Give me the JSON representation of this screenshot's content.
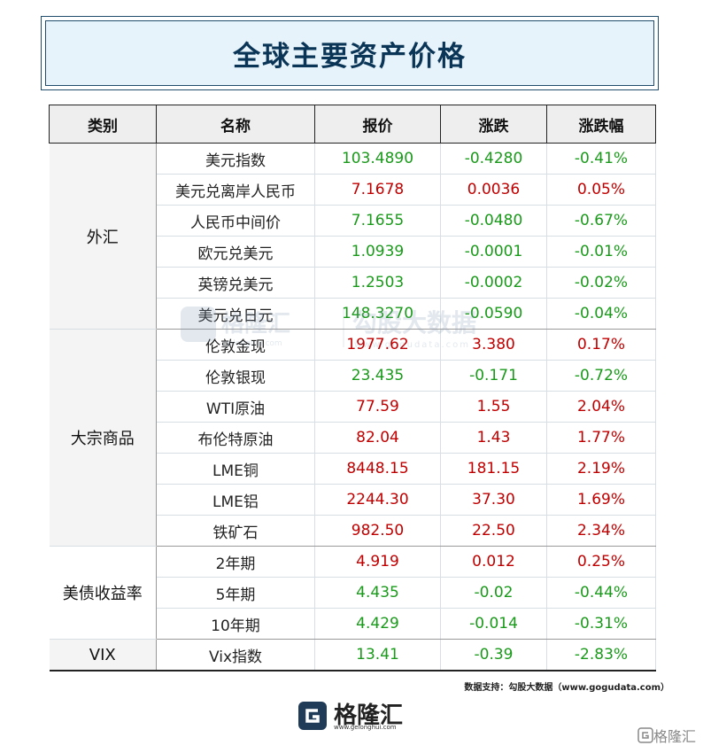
{
  "title": "全球主要资产价格",
  "headers": [
    "类别",
    "名称",
    "报价",
    "涨跌",
    "涨跌幅"
  ],
  "groups": [
    {
      "category": "外汇",
      "rows": [
        {
          "name": "美元指数",
          "price": "103.4890",
          "change": "-0.4280",
          "pct": "-0.41%",
          "dir": "down"
        },
        {
          "name": "美元兑离岸人民币",
          "price": "7.1678",
          "change": "0.0036",
          "pct": "0.05%",
          "dir": "up"
        },
        {
          "name": "人民币中间价",
          "price": "7.1655",
          "change": "-0.0480",
          "pct": "-0.67%",
          "dir": "down"
        },
        {
          "name": "欧元兑美元",
          "price": "1.0939",
          "change": "-0.0001",
          "pct": "-0.01%",
          "dir": "down"
        },
        {
          "name": "英镑兑美元",
          "price": "1.2503",
          "change": "-0.0002",
          "pct": "-0.02%",
          "dir": "down"
        },
        {
          "name": "美元兑日元",
          "price": "148.3270",
          "change": "-0.0590",
          "pct": "-0.04%",
          "dir": "down"
        }
      ]
    },
    {
      "category": "大宗商品",
      "rows": [
        {
          "name": "伦敦金现",
          "price": "1977.62",
          "change": "3.380",
          "pct": "0.17%",
          "dir": "up"
        },
        {
          "name": "伦敦银现",
          "price": "23.435",
          "change": "-0.171",
          "pct": "-0.72%",
          "dir": "down"
        },
        {
          "name": "WTI原油",
          "price": "77.59",
          "change": "1.55",
          "pct": "2.04%",
          "dir": "up"
        },
        {
          "name": "布伦特原油",
          "price": "82.04",
          "change": "1.43",
          "pct": "1.77%",
          "dir": "up"
        },
        {
          "name": "LME铜",
          "price": "8448.15",
          "change": "181.15",
          "pct": "2.19%",
          "dir": "up"
        },
        {
          "name": "LME铝",
          "price": "2244.30",
          "change": "37.30",
          "pct": "1.69%",
          "dir": "up"
        },
        {
          "name": "铁矿石",
          "price": "982.50",
          "change": "22.50",
          "pct": "2.34%",
          "dir": "up"
        }
      ]
    },
    {
      "category": "美债收益率",
      "rows": [
        {
          "name": "2年期",
          "price": "4.919",
          "change": "0.012",
          "pct": "0.25%",
          "dir": "up"
        },
        {
          "name": "5年期",
          "price": "4.435",
          "change": "-0.02",
          "pct": "-0.44%",
          "dir": "down"
        },
        {
          "name": "10年期",
          "price": "4.429",
          "change": "-0.014",
          "pct": "-0.31%",
          "dir": "down"
        }
      ]
    },
    {
      "category": "VIX",
      "rows": [
        {
          "name": "Vix指数",
          "price": "13.41",
          "change": "-0.39",
          "pct": "-2.83%",
          "dir": "down"
        }
      ]
    }
  ],
  "watermark": {
    "brand": "格隆汇",
    "brand_url": "gelonghui.com",
    "partner": "勾股大数据",
    "partner_url": "www.gogudata.com"
  },
  "source": "数据支持：勾股大数据（www.gogudata.com）",
  "logo": {
    "text": "格隆汇",
    "url": "www.gelonghui.com"
  },
  "corner_mark": "格隆汇",
  "colors": {
    "up": "#c00000",
    "down": "#1a9a1a",
    "title": "#0b3556",
    "title_bg": "#e6f3fb"
  }
}
